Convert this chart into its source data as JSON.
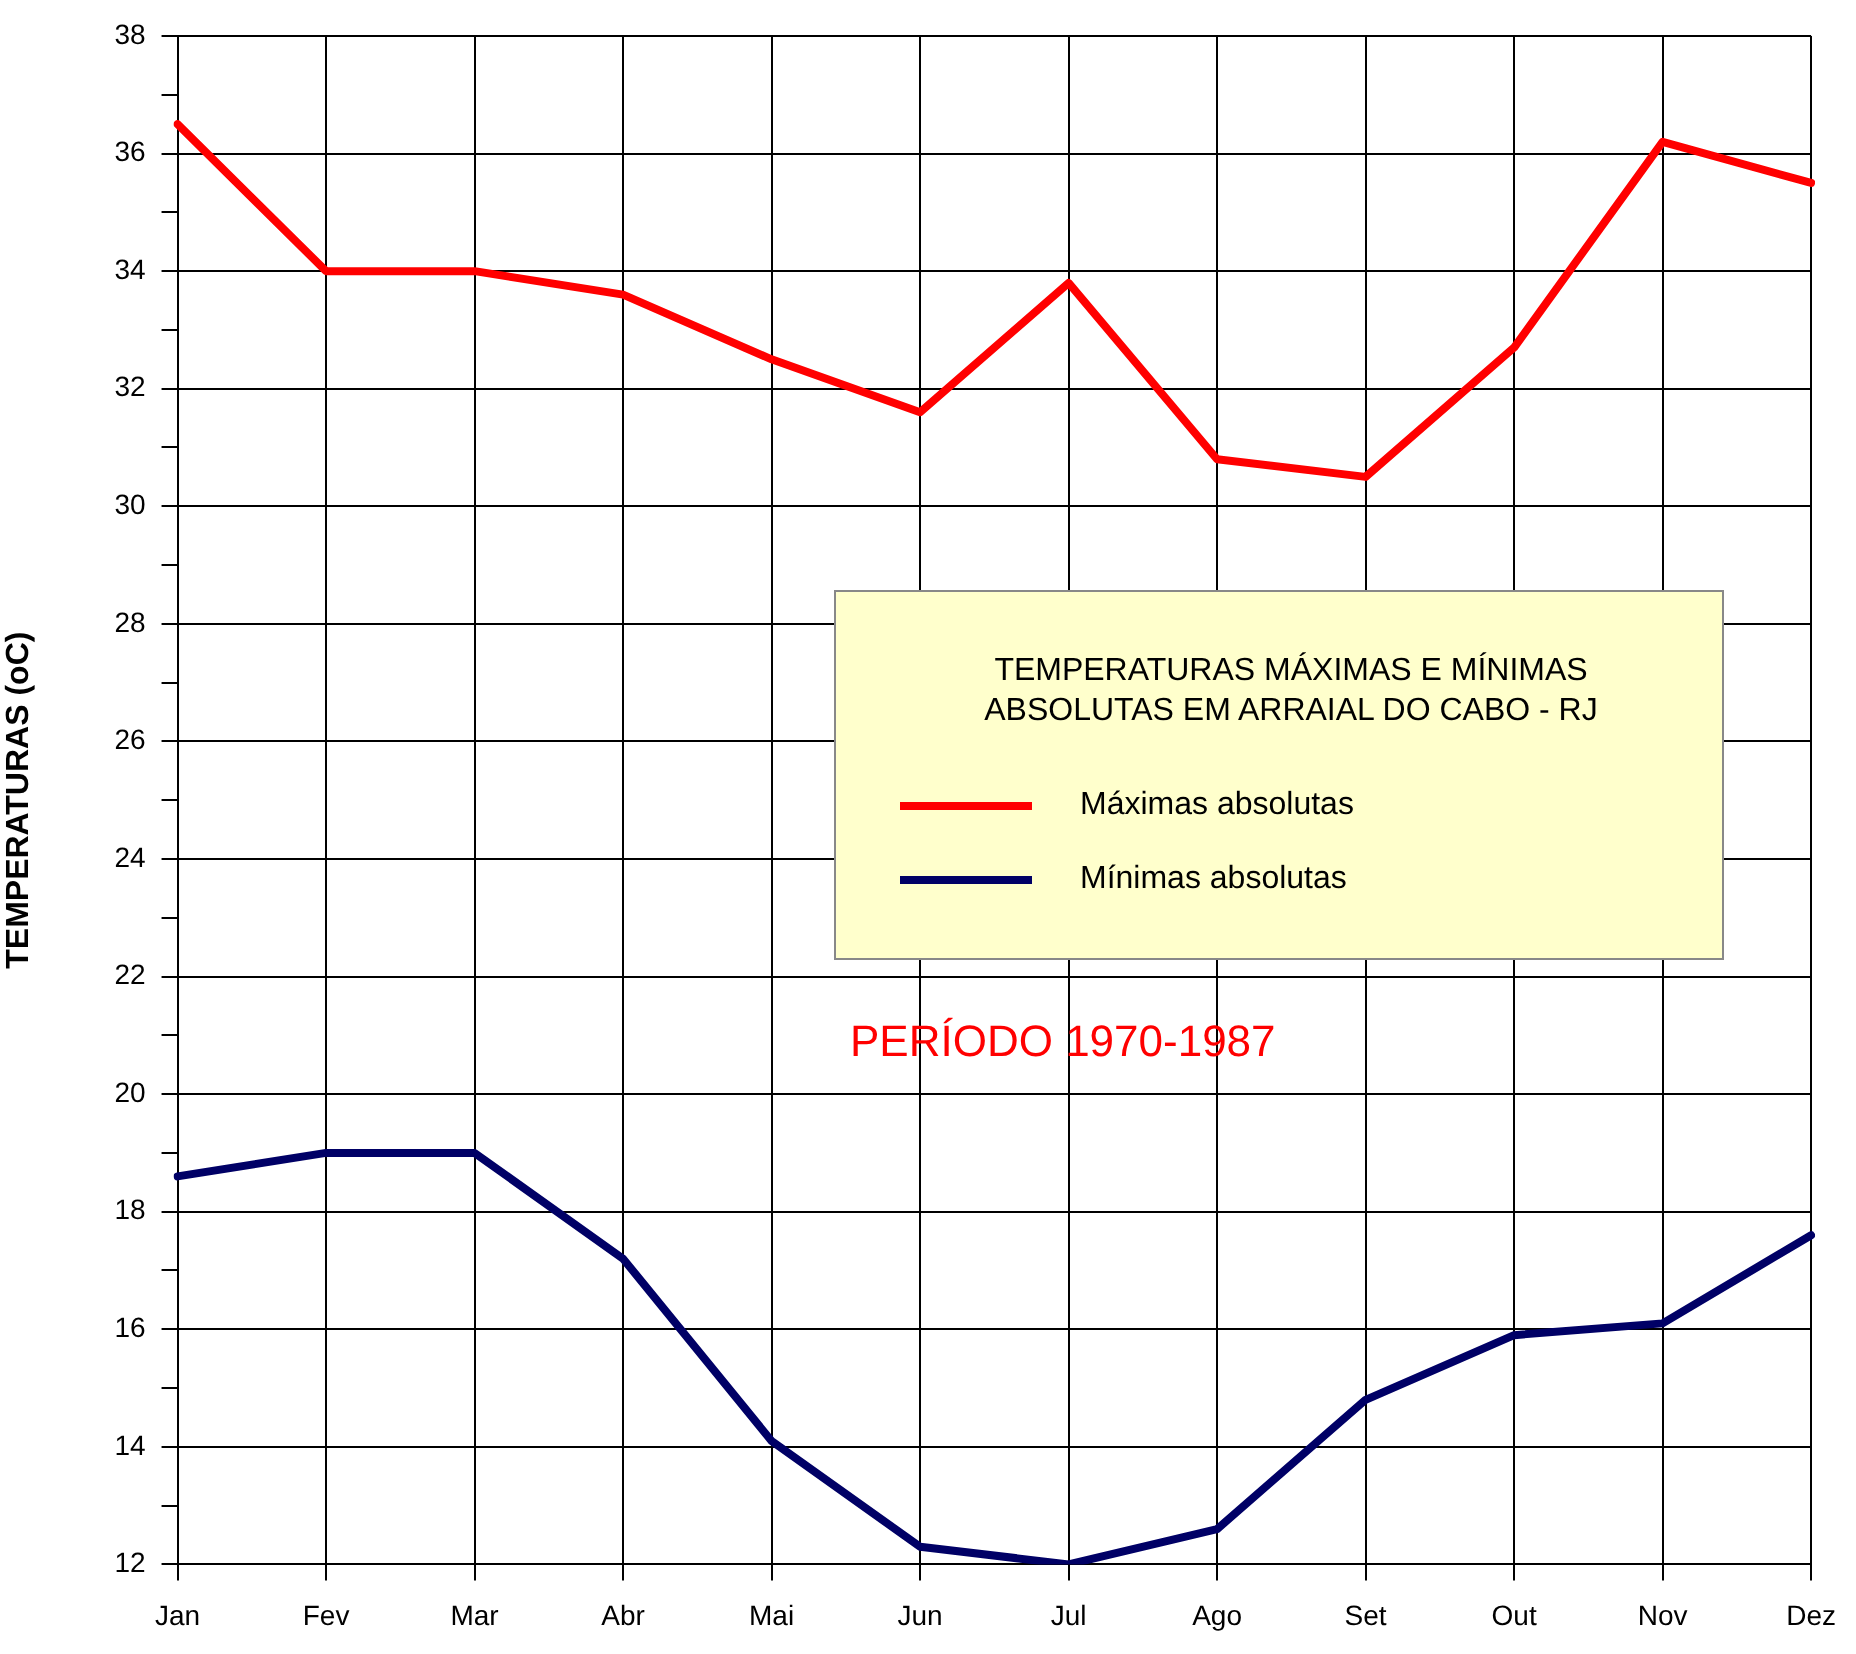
{
  "chart_data": {
    "type": "line",
    "legend_title": "TEMPERATURAS MÁXIMAS E MÍNIMAS ABSOLUTAS EM ARRAIAL DO CABO - RJ",
    "ylabel": "TEMPERATURAS (oC)",
    "annotations": [
      "PERÍODO 1970-1987"
    ],
    "categories": [
      "Jan",
      "Fev",
      "Mar",
      "Abr",
      "Mai",
      "Jun",
      "Jul",
      "Ago",
      "Set",
      "Out",
      "Nov",
      "Dez"
    ],
    "series": [
      {
        "name": "Máximas absolutas",
        "color": "#ff0000",
        "values": [
          36.5,
          34.0,
          34.0,
          33.6,
          32.5,
          31.6,
          33.8,
          30.8,
          30.5,
          32.7,
          36.2,
          35.5
        ]
      },
      {
        "name": "Mínimas absolutas",
        "color": "#000066",
        "values": [
          18.6,
          19.0,
          19.0,
          17.2,
          14.1,
          12.3,
          12.0,
          12.6,
          14.8,
          15.9,
          16.1,
          17.6
        ]
      }
    ],
    "ylim": [
      12,
      38
    ],
    "yticks": [
      12,
      {
        "value": 13,
        "label": null
      },
      14,
      {
        "value": 15,
        "label": null
      },
      16,
      {
        "value": 17,
        "label": null
      },
      18,
      {
        "value": 19,
        "label": null
      },
      20,
      {
        "value": 21,
        "label": null
      },
      22,
      {
        "value": 23,
        "label": null
      },
      24,
      {
        "value": 25,
        "label": null
      },
      26,
      {
        "value": 27,
        "label": null
      },
      28,
      {
        "value": 29,
        "label": null
      },
      30,
      {
        "value": 31,
        "label": null
      },
      32,
      {
        "value": 33,
        "label": null
      },
      34,
      {
        "value": 35,
        "label": null
      },
      36,
      {
        "value": 37,
        "label": null
      },
      38
    ],
    "grid": true,
    "legend": "center",
    "marker": "none",
    "line_style": "solid"
  }
}
